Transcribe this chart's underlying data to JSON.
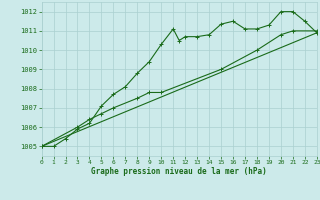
{
  "title": "Graphe pression niveau de la mer (hPa)",
  "bg_color": "#cceaea",
  "grid_color": "#aad0d0",
  "line_color": "#1a6b1a",
  "x_min": 0,
  "x_max": 23,
  "y_min": 1004.5,
  "y_max": 1012.5,
  "y_ticks": [
    1005,
    1006,
    1007,
    1008,
    1009,
    1010,
    1011,
    1012
  ],
  "x_ticks": [
    0,
    1,
    2,
    3,
    4,
    5,
    6,
    7,
    8,
    9,
    10,
    11,
    12,
    13,
    14,
    15,
    16,
    17,
    18,
    19,
    20,
    21,
    22,
    23
  ],
  "series1_x": [
    0,
    1,
    2,
    3,
    4,
    5,
    6,
    7,
    8,
    9,
    10,
    11,
    11.5,
    12,
    13,
    14,
    15,
    16,
    17,
    18,
    19,
    20,
    21,
    22,
    23
  ],
  "series1_y": [
    1005.0,
    1005.0,
    1005.4,
    1005.9,
    1006.2,
    1007.1,
    1007.7,
    1008.1,
    1008.8,
    1009.4,
    1010.3,
    1011.1,
    1010.5,
    1010.7,
    1010.7,
    1010.8,
    1011.35,
    1011.5,
    1011.1,
    1011.1,
    1011.3,
    1012.0,
    1012.0,
    1011.5,
    1010.9
  ],
  "series2_x": [
    0,
    3,
    4,
    5,
    6,
    8,
    9,
    10,
    15,
    18,
    20,
    21,
    23
  ],
  "series2_y": [
    1005.0,
    1006.0,
    1006.4,
    1006.7,
    1007.0,
    1007.5,
    1007.8,
    1007.8,
    1009.0,
    1010.0,
    1010.8,
    1011.0,
    1011.0
  ],
  "series3_x": [
    0,
    23
  ],
  "series3_y": [
    1005.0,
    1010.9
  ]
}
